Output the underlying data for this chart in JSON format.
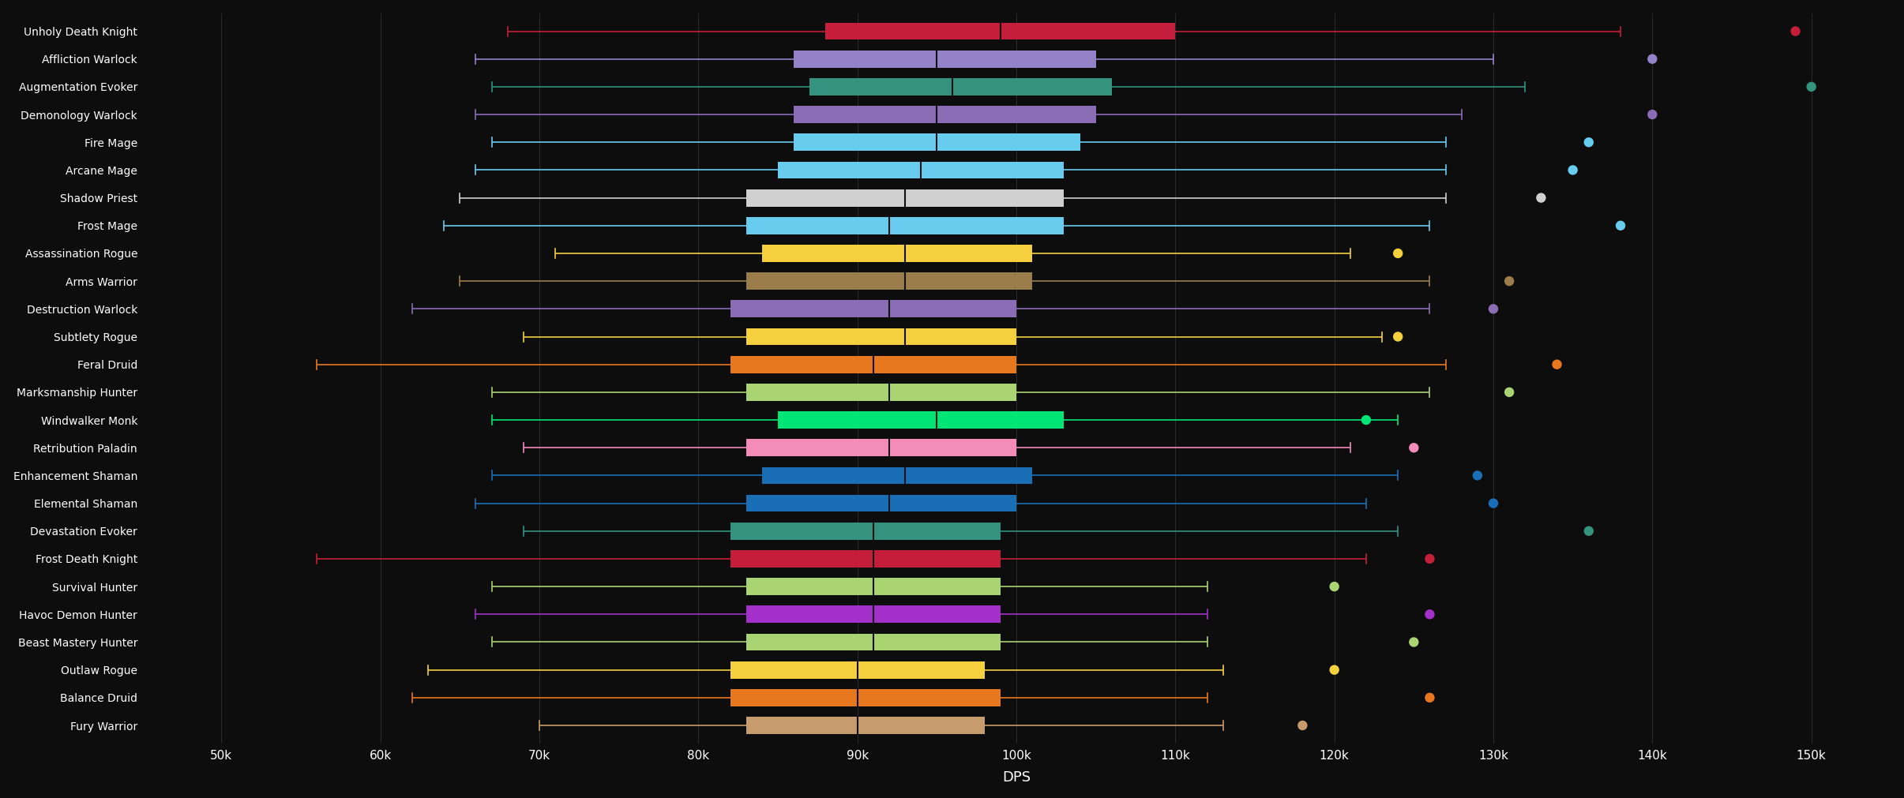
{
  "background_color": "#0d0d0d",
  "xlabel": "DPS",
  "xlim": [
    45000,
    155000
  ],
  "xticks": [
    50000,
    60000,
    70000,
    80000,
    90000,
    100000,
    110000,
    120000,
    130000,
    140000,
    150000
  ],
  "xtick_labels": [
    "50k",
    "60k",
    "70k",
    "80k",
    "90k",
    "100k",
    "110k",
    "120k",
    "130k",
    "140k",
    "150k"
  ],
  "grid_color": "#2a2a2a",
  "text_color": "#ffffff",
  "classes": [
    "Unholy Death Knight",
    "Affliction Warlock",
    "Augmentation Evoker",
    "Demonology Warlock",
    "Fire Mage",
    "Arcane Mage",
    "Shadow Priest",
    "Frost Mage",
    "Assassination Rogue",
    "Arms Warrior",
    "Destruction Warlock",
    "Subtlety Rogue",
    "Feral Druid",
    "Marksmanship Hunter",
    "Windwalker Monk",
    "Retribution Paladin",
    "Enhancement Shaman",
    "Elemental Shaman",
    "Devastation Evoker",
    "Frost Death Knight",
    "Survival Hunter",
    "Havoc Demon Hunter",
    "Beast Mastery Hunter",
    "Outlaw Rogue",
    "Balance Druid",
    "Fury Warrior"
  ],
  "box_colors": [
    "#c41e3a",
    "#9482c9",
    "#33937f",
    "#8a6db5",
    "#68ccef",
    "#68ccef",
    "#d0d0d0",
    "#68ccef",
    "#f4d03f",
    "#9b7d4c",
    "#8a6db5",
    "#f4d03f",
    "#e87820",
    "#aad372",
    "#00e676",
    "#f48cba",
    "#1a6eb5",
    "#1a6eb5",
    "#33937f",
    "#c41e3a",
    "#aad372",
    "#a330c9",
    "#aad372",
    "#f4d03f",
    "#e87820",
    "#c69b6d"
  ],
  "whisker_colors": [
    "#c41e3a",
    "#9482c9",
    "#33937f",
    "#8a6db5",
    "#68ccef",
    "#68ccef",
    "#d0d0d0",
    "#68ccef",
    "#f4d03f",
    "#9b7d4c",
    "#8a6db5",
    "#f4d03f",
    "#e87820",
    "#aad372",
    "#00e676",
    "#f48cba",
    "#1a6eb5",
    "#1a6eb5",
    "#33937f",
    "#c41e3a",
    "#aad372",
    "#a330c9",
    "#aad372",
    "#f4d03f",
    "#e87820",
    "#c69b6d"
  ],
  "dot_colors": [
    "#c41e3a",
    "#9482c9",
    "#33937f",
    "#8a6db5",
    "#68ccef",
    "#68ccef",
    "#d0d0d0",
    "#68ccef",
    "#f4d03f",
    "#9b7d4c",
    "#8a6db5",
    "#f4d03f",
    "#e87820",
    "#aad372",
    "#00e676",
    "#f48cba",
    "#1a6eb5",
    "#1a6eb5",
    "#33937f",
    "#c41e3a",
    "#aad372",
    "#a330c9",
    "#aad372",
    "#f4d03f",
    "#e87820",
    "#c69b6d"
  ],
  "whisker_min": [
    68000,
    66000,
    67000,
    66000,
    67000,
    66000,
    65000,
    64000,
    71000,
    65000,
    62000,
    69000,
    56000,
    67000,
    67000,
    69000,
    67000,
    66000,
    69000,
    56000,
    67000,
    66000,
    67000,
    63000,
    62000,
    70000
  ],
  "whisker_max": [
    138000,
    130000,
    132000,
    128000,
    127000,
    127000,
    127000,
    126000,
    121000,
    126000,
    126000,
    123000,
    127000,
    126000,
    124000,
    121000,
    124000,
    122000,
    124000,
    122000,
    112000,
    112000,
    112000,
    113000,
    112000,
    113000
  ],
  "q1": [
    88000,
    86000,
    87000,
    86000,
    86000,
    85000,
    83000,
    83000,
    84000,
    83000,
    82000,
    83000,
    82000,
    83000,
    85000,
    83000,
    84000,
    83000,
    82000,
    82000,
    83000,
    83000,
    83000,
    82000,
    82000,
    83000
  ],
  "median": [
    99000,
    95000,
    96000,
    95000,
    95000,
    94000,
    93000,
    92000,
    93000,
    93000,
    92000,
    93000,
    91000,
    92000,
    95000,
    92000,
    93000,
    92000,
    91000,
    91000,
    91000,
    91000,
    91000,
    90000,
    90000,
    90000
  ],
  "q3": [
    110000,
    105000,
    106000,
    105000,
    104000,
    103000,
    103000,
    103000,
    101000,
    101000,
    100000,
    100000,
    100000,
    100000,
    103000,
    100000,
    101000,
    100000,
    99000,
    99000,
    99000,
    99000,
    99000,
    98000,
    99000,
    98000
  ],
  "outlier_x": [
    149000,
    140000,
    150000,
    140000,
    136000,
    135000,
    133000,
    138000,
    124000,
    131000,
    130000,
    124000,
    134000,
    131000,
    122000,
    125000,
    129000,
    130000,
    136000,
    126000,
    120000,
    126000,
    125000,
    120000,
    126000,
    118000
  ]
}
